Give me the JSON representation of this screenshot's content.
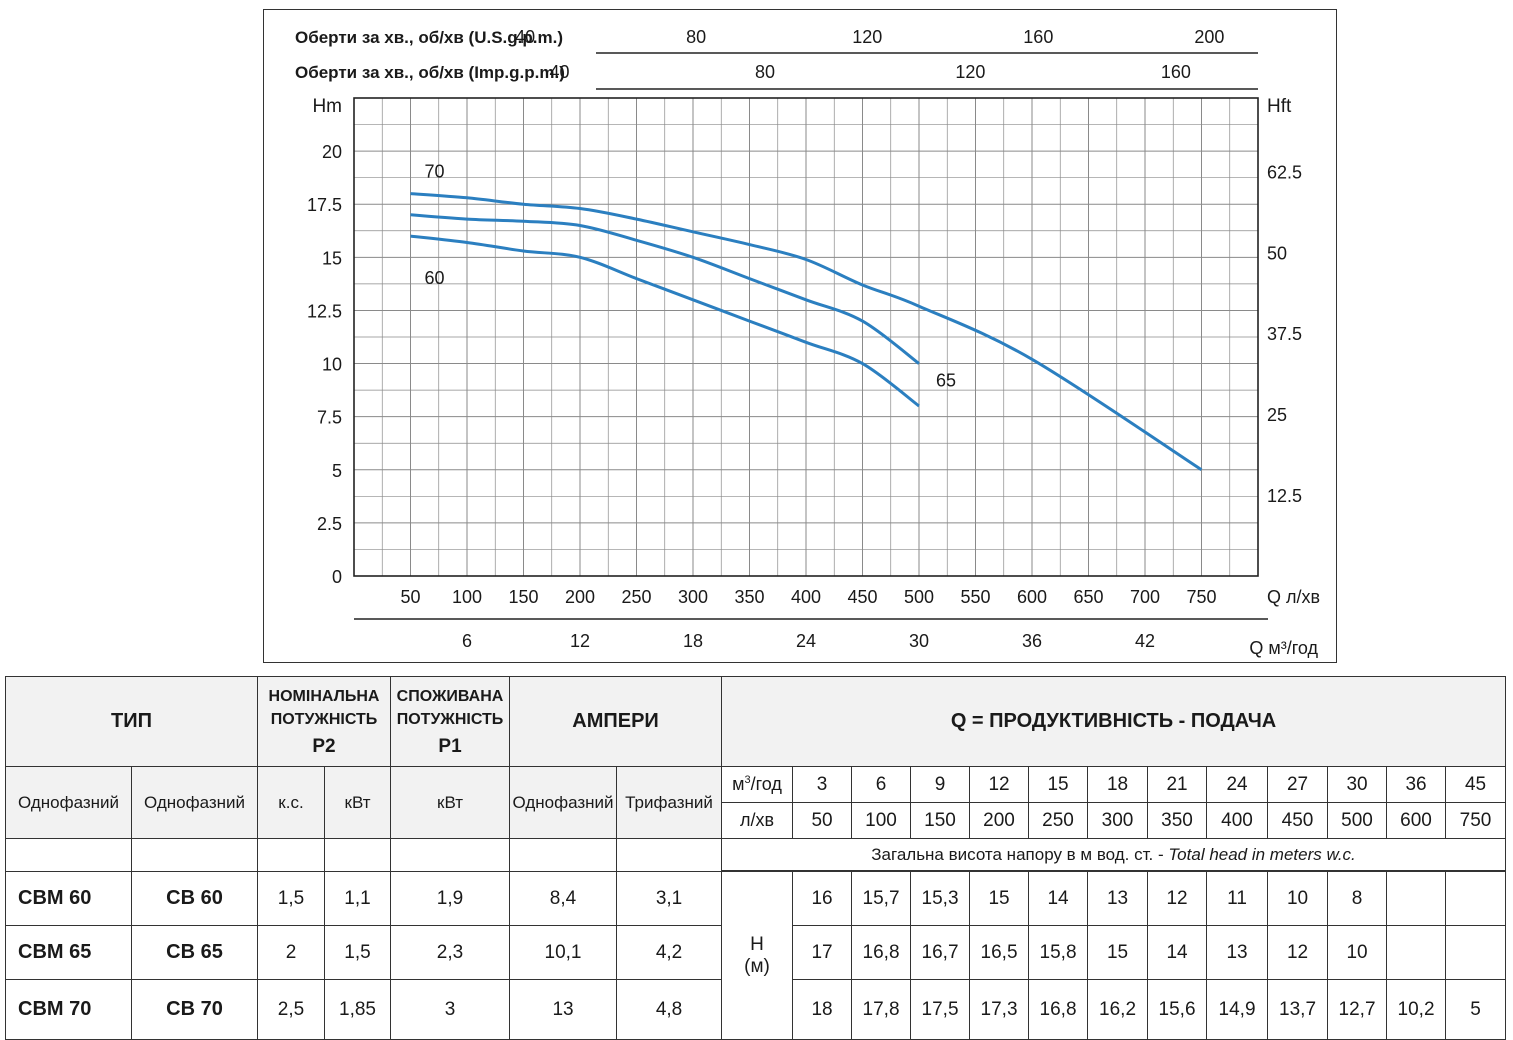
{
  "chart_data": {
    "type": "line",
    "top_axis_1_label": "Оберти за хв., об/хв (U.S.g.p.m.)",
    "top_axis_1_ticks": [
      "40",
      "80",
      "120",
      "160",
      "200"
    ],
    "top_axis_2_label": "Оберти за хв., об/хв (Imp.g.p.m.)",
    "top_axis_2_ticks": [
      "40",
      "80",
      "120",
      "160"
    ],
    "ylabel_left": "Hm",
    "ylabel_right": "Hft",
    "yticks_left": [
      "0",
      "2.5",
      "5",
      "7.5",
      "10",
      "12.5",
      "15",
      "17.5",
      "20"
    ],
    "yticks_right": [
      "12.5",
      "25",
      "37.5",
      "50",
      "62.5"
    ],
    "xlabel": "Q л/хв",
    "xticks": [
      "50",
      "100",
      "150",
      "200",
      "250",
      "300",
      "350",
      "400",
      "450",
      "500",
      "550",
      "600",
      "650",
      "700",
      "750"
    ],
    "xlabel_2": "Q м³/год",
    "xticks_2": [
      "6",
      "12",
      "18",
      "24",
      "30",
      "36",
      "42"
    ],
    "xlim": [
      0,
      800
    ],
    "ylim": [
      0,
      22.5
    ],
    "grid": true,
    "series": [
      {
        "name": "70",
        "x": [
          50,
          100,
          150,
          200,
          250,
          300,
          350,
          400,
          450,
          500,
          600,
          750
        ],
        "y": [
          18,
          17.8,
          17.5,
          17.3,
          16.8,
          16.2,
          15.6,
          14.9,
          13.7,
          12.7,
          10.2,
          5
        ]
      },
      {
        "name": "65",
        "x": [
          50,
          100,
          150,
          200,
          250,
          300,
          350,
          400,
          450,
          500
        ],
        "y": [
          17,
          16.8,
          16.7,
          16.5,
          15.8,
          15,
          14,
          13,
          12,
          10
        ]
      },
      {
        "name": "60",
        "x": [
          50,
          100,
          150,
          200,
          250,
          300,
          350,
          400,
          450,
          500
        ],
        "y": [
          16,
          15.7,
          15.3,
          15,
          14,
          13,
          12,
          11,
          10,
          8
        ]
      }
    ],
    "curve_color": "#2b7fc0"
  },
  "table": {
    "type_header": "ТИП",
    "p2_header": [
      "НОМІНАЛЬНА",
      "ПОТУЖНІСТЬ"
    ],
    "p2_sym": "P2",
    "p1_header": [
      "СПОЖИВАНА",
      "ПОТУЖНІСТЬ"
    ],
    "p1_sym": "P1",
    "amp_header": "АМПЕРИ",
    "q_header": "Q = ПРОДУКТИВНІСТЬ - ПОДАЧА",
    "phase1": "Однофазний",
    "phase2": "Однофазний",
    "hp": "к.с.",
    "kw": "кВт",
    "kw2": "кВт",
    "amp1": "Однофазний",
    "amp3": "Трифазний",
    "m3_unit_base": "м",
    "m3_unit_sup": "3",
    "m3_unit_rest": "/год",
    "lmin_unit": "л/хв",
    "m3_values": [
      "3",
      "6",
      "9",
      "12",
      "15",
      "18",
      "21",
      "24",
      "27",
      "30",
      "36",
      "45"
    ],
    "lmin_values": [
      "50",
      "100",
      "150",
      "200",
      "250",
      "300",
      "350",
      "400",
      "450",
      "500",
      "600",
      "750"
    ],
    "note_main": "Загальна висота напору в м вод. ст. - ",
    "note_italic": "Total head in meters w.c.",
    "h_label": "H",
    "h_unit": "(м)",
    "rows": [
      {
        "m1": "CBM 60",
        "m2": "CB 60",
        "hp": "1,5",
        "kw": "1,1",
        "p1": "1,9",
        "a1": "8,4",
        "a3": "3,1",
        "h": [
          "16",
          "15,7",
          "15,3",
          "15",
          "14",
          "13",
          "12",
          "11",
          "10",
          "8",
          "",
          ""
        ]
      },
      {
        "m1": "CBM 65",
        "m2": "CB 65",
        "hp": "2",
        "kw": "1,5",
        "p1": "2,3",
        "a1": "10,1",
        "a3": "4,2",
        "h": [
          "17",
          "16,8",
          "16,7",
          "16,5",
          "15,8",
          "15",
          "14",
          "13",
          "12",
          "10",
          "",
          ""
        ]
      },
      {
        "m1": "CBM 70",
        "m2": "CB 70",
        "hp": "2,5",
        "kw": "1,85",
        "p1": "3",
        "a1": "13",
        "a3": "4,8",
        "h": [
          "18",
          "17,8",
          "17,5",
          "17,3",
          "16,8",
          "16,2",
          "15,6",
          "14,9",
          "13,7",
          "12,7",
          "10,2",
          "5"
        ]
      }
    ]
  }
}
